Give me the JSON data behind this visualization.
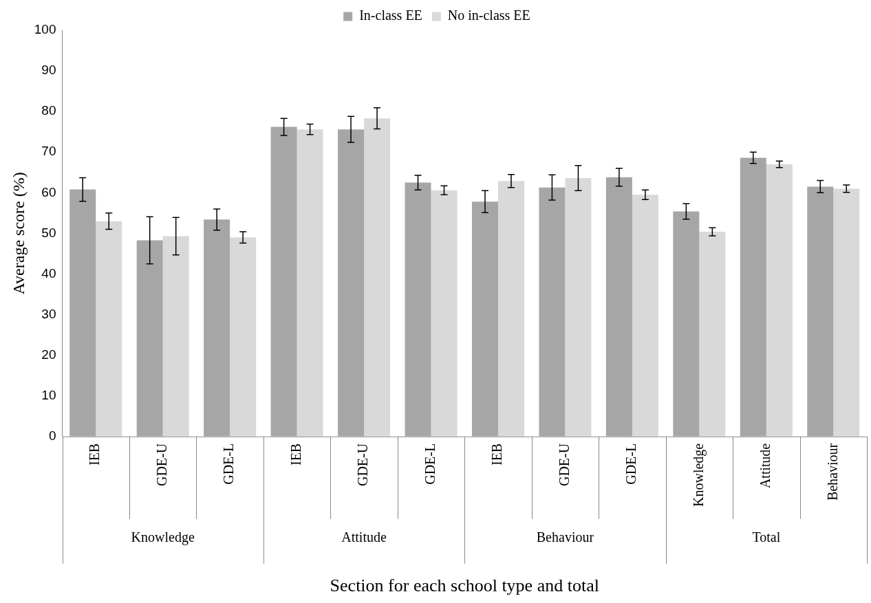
{
  "chart_data": {
    "type": "bar",
    "xlabel": "Section for each school type and total",
    "ylabel": "Average score (%)",
    "categories": [
      "IEB",
      "GDE-U",
      "GDE-L",
      "IEB",
      "GDE-U",
      "GDE-L",
      "IEB",
      "GDE-U",
      "GDE-L",
      "Knowledge",
      "Attitude",
      "Behaviour"
    ],
    "annotations": [
      "Knowledge",
      "Attitude",
      "Behaviour",
      "Total"
    ],
    "series": [
      {
        "name": "In-class EE",
        "color": "#a6a6a6",
        "values": [
          60.8,
          48.3,
          53.4,
          76.2,
          75.6,
          62.5,
          57.8,
          61.3,
          63.8,
          55.4,
          68.6,
          61.5
        ],
        "errors": [
          2.9,
          5.8,
          2.6,
          2.1,
          3.2,
          1.8,
          2.7,
          3.1,
          2.2,
          1.9,
          1.4,
          1.5
        ]
      },
      {
        "name": "No in-class EE",
        "color": "#d9d9d9",
        "values": [
          53,
          49.3,
          49,
          75.6,
          78.3,
          60.6,
          62.9,
          63.6,
          59.5,
          50.4,
          67,
          61
        ],
        "errors": [
          2,
          4.6,
          1.4,
          1.3,
          2.6,
          1.1,
          1.6,
          3.1,
          1.2,
          1,
          0.8,
          0.9
        ]
      }
    ],
    "ylim": [
      0,
      100
    ],
    "yticks": [
      0,
      10,
      20,
      30,
      40,
      50,
      60,
      70,
      80,
      90,
      100
    ],
    "grid": false,
    "legend": "top"
  }
}
